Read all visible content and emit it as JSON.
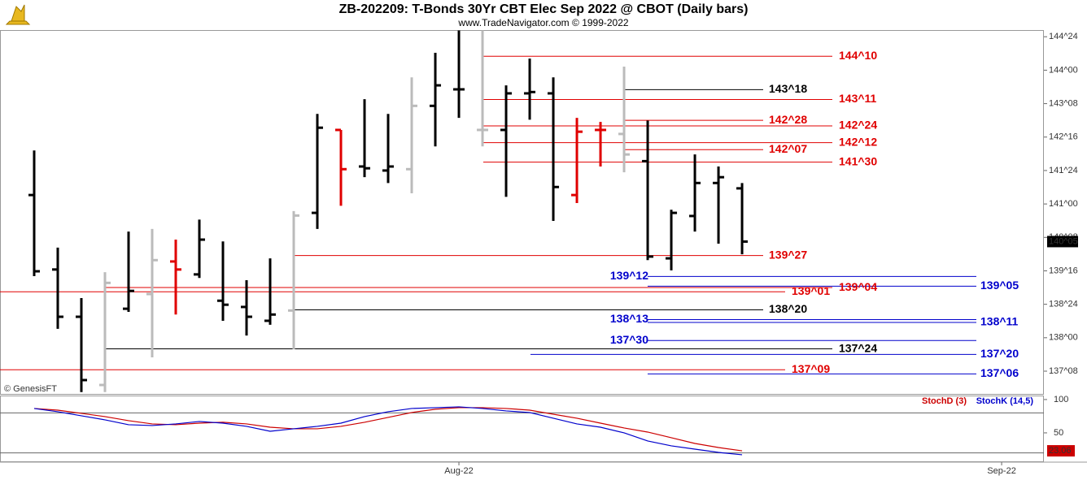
{
  "title": "ZB-202209:  T-Bonds 30Yr CBT Elec Sep 2022 @ CBOT  (Daily bars)",
  "subtitle": "www.TradeNavigator.com © 1999-2022",
  "credit": "© GenesisFT",
  "chart_data": [
    {
      "type": "ohlc",
      "x": [
        0,
        1,
        2,
        3,
        4,
        5,
        6,
        7,
        8,
        9,
        10,
        11,
        12,
        13,
        14,
        15,
        16,
        17,
        18,
        19,
        20,
        21,
        22,
        23,
        24,
        25,
        26,
        27,
        28,
        29,
        30
      ],
      "xlim": [
        -1.448,
        42.79
      ],
      "xticks": [
        {
          "value": 18,
          "label": "Aug-22"
        },
        {
          "value": 41,
          "label": "Sep-22"
        }
      ],
      "ylim": [
        136.74,
        144.9
      ],
      "yticks": [
        {
          "value": 144.75,
          "label": "144^24"
        },
        {
          "value": 144,
          "label": "144^00"
        },
        {
          "value": 143.25,
          "label": "143^08"
        },
        {
          "value": 142.5,
          "label": "142^16"
        },
        {
          "value": 141.75,
          "label": "141^24"
        },
        {
          "value": 141,
          "label": "141^00"
        },
        {
          "value": 140.25,
          "label": "140^08"
        },
        {
          "value": 139.5,
          "label": "139^16"
        },
        {
          "value": 138.75,
          "label": "138^24"
        },
        {
          "value": 138,
          "label": "138^00"
        },
        {
          "value": 137.25,
          "label": "137^08"
        }
      ],
      "open": [
        141.2,
        139.53,
        138.47,
        136.94,
        138.65,
        138.98,
        139.71,
        139.42,
        138.83,
        138.69,
        138.38,
        138.61,
        140.8,
        142.66,
        141.84,
        141.75,
        141.78,
        143.2,
        143.57,
        142.66,
        142.66,
        143.48,
        143.48,
        141.2,
        142.66,
        142.57,
        141.96,
        139.78,
        140.73,
        141.47,
        141.35
      ],
      "high": [
        142.2,
        140.02,
        138.89,
        139.47,
        140.38,
        140.44,
        140.2,
        140.65,
        140.16,
        139.29,
        139.78,
        140.84,
        143.02,
        142.66,
        143.35,
        143.02,
        143.84,
        144.39,
        144.89,
        144.89,
        143.66,
        144.26,
        143.84,
        142.93,
        142.84,
        144.08,
        142.87,
        140.87,
        142.11,
        141.84,
        141.47
      ],
      "low": [
        139.38,
        138.2,
        136.78,
        136.78,
        138.58,
        137.56,
        138.52,
        139.34,
        138.38,
        138.05,
        138.29,
        137.74,
        140.44,
        140.96,
        141.6,
        141.47,
        141.24,
        142.29,
        142.93,
        142.29,
        141.16,
        142.89,
        140.62,
        141.02,
        141.84,
        141.71,
        139.74,
        139.51,
        140.38,
        140.11,
        139.87
      ],
      "close": [
        139.49,
        138.47,
        137.05,
        139.23,
        139.05,
        139.74,
        139.53,
        140.2,
        138.74,
        138.47,
        138.52,
        140.74,
        142.71,
        141.78,
        141.8,
        141.84,
        143.2,
        143.66,
        143.57,
        142.66,
        143.48,
        143.51,
        141.38,
        142.62,
        142.66,
        142.11,
        139.82,
        140.8,
        141.47,
        141.6,
        140.15625
      ],
      "last_label": "140^05",
      "bar_colors": [
        "#000000",
        "#000000",
        "#000000",
        "#bbbbbb",
        "#000000",
        "#bbbbbb",
        "#e00000",
        "#000000",
        "#000000",
        "#000000",
        "#000000",
        "#bbbbbb",
        "#000000",
        "#e00000",
        "#000000",
        "#000000",
        "#bbbbbb",
        "#000000",
        "#000000",
        "#bbbbbb",
        "#000000",
        "#000000",
        "#000000",
        "#e00000",
        "#e00000",
        "#bbbbbb",
        "#000000",
        "#000000",
        "#000000",
        "#000000",
        "#000000"
      ],
      "levels": [
        {
          "label": "144^10",
          "value": 144.3125,
          "color": "#e00000"
        },
        {
          "label": "143^18",
          "value": 143.5625,
          "color": "#000000"
        },
        {
          "label": "143^11",
          "value": 143.34375,
          "color": "#e00000"
        },
        {
          "label": "142^28",
          "value": 142.875,
          "color": "#e00000"
        },
        {
          "label": "142^24",
          "value": 142.75,
          "color": "#e00000"
        },
        {
          "label": "142^12",
          "value": 142.375,
          "color": "#e00000"
        },
        {
          "label": "142^07",
          "value": 142.21875,
          "color": "#e00000"
        },
        {
          "label": "141^30",
          "value": 141.9375,
          "color": "#e00000"
        },
        {
          "label": "139^27",
          "value": 139.84375,
          "color": "#e00000"
        },
        {
          "label": "139^12",
          "value": 139.375,
          "color": "#0000cc"
        },
        {
          "label": "139^05",
          "value": 139.15625,
          "color": "#0000cc"
        },
        {
          "label": "139^04",
          "value": 139.125,
          "color": "#e00000"
        },
        {
          "label": "139^01",
          "value": 139.03125,
          "color": "#e00000"
        },
        {
          "label": "138^20",
          "value": 138.625,
          "color": "#000000"
        },
        {
          "label": "138^13",
          "value": 138.40625,
          "color": "#0000cc"
        },
        {
          "label": "138^11",
          "value": 138.34375,
          "color": "#0000cc"
        },
        {
          "label": "137^30",
          "value": 137.9375,
          "color": "#0000cc"
        },
        {
          "label": "137^24",
          "value": 137.75,
          "color": "#000000"
        },
        {
          "label": "137^20",
          "value": 137.625,
          "color": "#0000cc"
        },
        {
          "label": "137^09",
          "value": 137.28125,
          "color": "#e00000"
        },
        {
          "label": "137^06",
          "value": 137.1875,
          "color": "#0000cc"
        }
      ]
    },
    {
      "type": "line",
      "x": [
        0,
        1,
        2,
        3,
        4,
        5,
        6,
        7,
        8,
        9,
        10,
        11,
        12,
        13,
        14,
        15,
        16,
        17,
        18,
        19,
        20,
        21,
        22,
        23,
        24,
        25,
        26,
        27,
        28,
        29,
        30
      ],
      "xlim": [
        -1.448,
        42.79
      ],
      "ylim": [
        7.3,
        106
      ],
      "yticks": [
        100,
        50
      ],
      "reference_lines": [
        80,
        20
      ],
      "series": [
        {
          "name": "StochD (3)",
          "color": "#cc0000",
          "values": [
            86.6,
            84.1,
            79.3,
            74.4,
            68.3,
            63.4,
            62.2,
            64.6,
            65.9,
            63.4,
            58.5,
            56.1,
            56.1,
            59.8,
            65.9,
            73.2,
            80.5,
            85.4,
            87.8,
            87.8,
            86.6,
            84.1,
            78.0,
            72.0,
            64.6,
            57.3,
            51.2,
            42.7,
            34.1,
            28.0,
            23.06
          ]
        },
        {
          "name": "StochK (14,5)",
          "color": "#0000cc",
          "values": [
            86.6,
            81.7,
            75.6,
            69.5,
            62.2,
            61.0,
            63.4,
            67.1,
            64.6,
            59.8,
            52.4,
            56.1,
            59.8,
            64.6,
            74.4,
            81.7,
            86.6,
            87.8,
            89.0,
            86.6,
            82.9,
            80.5,
            72.0,
            63.4,
            58.5,
            50.0,
            37.8,
            30.5,
            25.6,
            20.7,
            17.1
          ]
        }
      ]
    }
  ]
}
